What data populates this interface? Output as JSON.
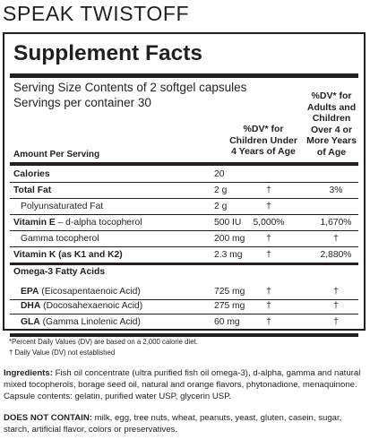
{
  "product": {
    "title": "SPEAK TWISTOFF"
  },
  "panel": {
    "heading": "Supplement Facts",
    "serving_size_label": "Serving Size",
    "serving_size_value": "Contents of 2 softgel capsules",
    "servings_label": "Servings per container",
    "servings_value": "30",
    "col_children_header": "%DV* for Children Under 4 Years of Age",
    "col_adults_header": "%DV* for Adults and Children Over 4 or More Years of Age",
    "amount_header": "Amount Per Serving",
    "rows": [
      {
        "name": "Calories",
        "amount": "20",
        "dv_children": "",
        "dv_adults": ""
      },
      {
        "name": "Total Fat",
        "amount": "2 g",
        "dv_children": "†",
        "dv_adults": "3%"
      },
      {
        "name": "Polyunsaturated Fat",
        "amount": "2 g",
        "dv_children": "†",
        "dv_adults": ""
      },
      {
        "name": "Vitamin E",
        "detail": " – d-alpha tocopherol",
        "amount": "500 IU",
        "dv_children": "5,000%",
        "dv_adults": "1,670%"
      },
      {
        "name": "Gamma tocopherol",
        "amount": "200 mg",
        "dv_children": "†",
        "dv_adults": "†"
      },
      {
        "name": "Vitamin K (as K1 and K2)",
        "amount": "2.3 mg",
        "dv_children": "†",
        "dv_adults": "2,880%"
      },
      {
        "name": "Omega-3 Fatty Acids",
        "amount": "",
        "dv_children": "",
        "dv_adults": ""
      },
      {
        "name": "EPA",
        "detail": " (Eicosapentaenoic Acid)",
        "amount": "725 mg",
        "dv_children": "†",
        "dv_adults": "†"
      },
      {
        "name": "DHA",
        "detail": " (Docosahexaenoic Acid)",
        "amount": "275 mg",
        "dv_children": "†",
        "dv_adults": "†"
      },
      {
        "name": "GLA",
        "detail": " (Gamma Linolenic Acid)",
        "amount": "60 mg",
        "dv_children": "†",
        "dv_adults": "†"
      }
    ],
    "footnote_1": "*Percent Daily Values (DV) are based on a 2,000 calorie diet.",
    "footnote_2": "† Daily Value (DV) not established"
  },
  "ingredients": {
    "label": "Ingredients:",
    "text": " Fish oil concentrate (ultra purified fish oil omega-3), d-alpha, gamma and natural mixed tocopherols, borage seed oil, natural and orange flavors, phytonadione, menaquinone. Capsule contents: gelatin, purified water USP, glycerin USP."
  },
  "exclusions": {
    "label": "DOES NOT CONTAIN:",
    "text": " milk, egg, tree nuts, wheat, peanuts, yeast, gluten, casein, sugar, starch, artificial flavor, colors or preservatives."
  }
}
